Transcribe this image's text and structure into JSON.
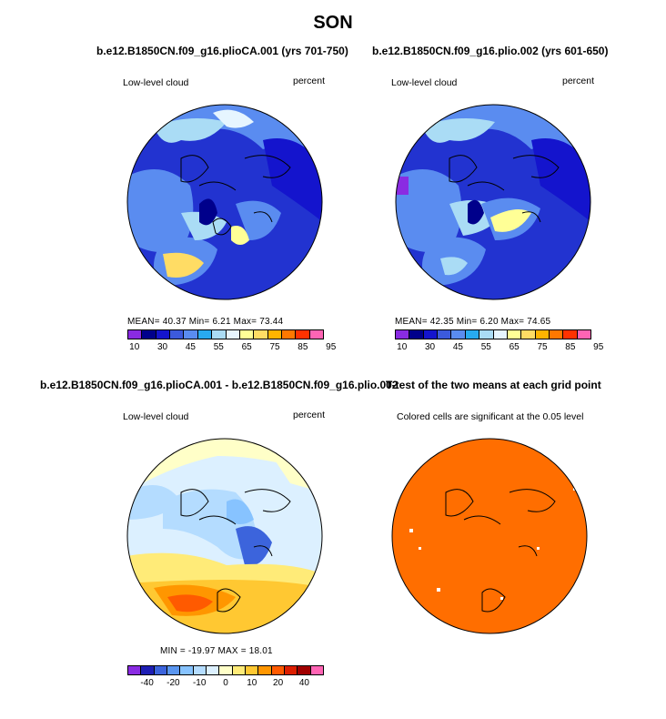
{
  "figure": {
    "title": "SON"
  },
  "panels": {
    "p1": {
      "title": "b.e12.B1850CN.f09_g16.plioCA.001 (yrs 701-750)",
      "left_label": "Low-level cloud",
      "right_label": "percent",
      "stats": "MEAN=  40.37  Min=    6.21  Max=  73.44",
      "colorbar": {
        "colors": [
          "#8a2be2",
          "#00008b",
          "#1414cd",
          "#3c5adc",
          "#5a8cf0",
          "#28aaf0",
          "#aadcf5",
          "#e6f5ff",
          "#ffff96",
          "#ffdc64",
          "#ffb400",
          "#ff7800",
          "#ff3200",
          "#ff64b4"
        ],
        "labels": [
          "10",
          "30",
          "45",
          "55",
          "65",
          "75",
          "85",
          "95"
        ]
      }
    },
    "p2": {
      "title": "b.e12.B1850CN.f09_g16.plio.002 (yrs 601-650)",
      "left_label": "Low-level cloud",
      "right_label": "percent",
      "stats": "MEAN=  42.35  Min=    6.20  Max=  74.65",
      "colorbar": {
        "colors": [
          "#8a2be2",
          "#00008b",
          "#1414cd",
          "#3c5adc",
          "#5a8cf0",
          "#28aaf0",
          "#aadcf5",
          "#e6f5ff",
          "#ffff96",
          "#ffdc64",
          "#ffb400",
          "#ff7800",
          "#ff3200",
          "#ff64b4"
        ],
        "labels": [
          "10",
          "30",
          "45",
          "55",
          "65",
          "75",
          "85",
          "95"
        ]
      }
    },
    "p3": {
      "title": "b.e12.B1850CN.f09_g16.plioCA.001 - b.e12.B1850CN.f09_g16.plio.002",
      "left_label": "Low-level cloud",
      "right_label": "percent",
      "stats": "MIN = -19.97  MAX =   18.01",
      "colorbar": {
        "colors": [
          "#8a2be2",
          "#1e1eb4",
          "#3c64dc",
          "#5a96f0",
          "#87c3ff",
          "#b4dcff",
          "#dcf0ff",
          "#ffffc8",
          "#ffeb78",
          "#ffc832",
          "#ff9600",
          "#ff5a00",
          "#dc1e00",
          "#a00000",
          "#ff64b4"
        ],
        "labels": [
          "-40",
          "-20",
          "-10",
          "0",
          "10",
          "20",
          "40"
        ]
      }
    },
    "p4": {
      "title": "T-test of the two means at each grid point",
      "left_label": "Colored cells are significant at the 0.05 level"
    }
  }
}
